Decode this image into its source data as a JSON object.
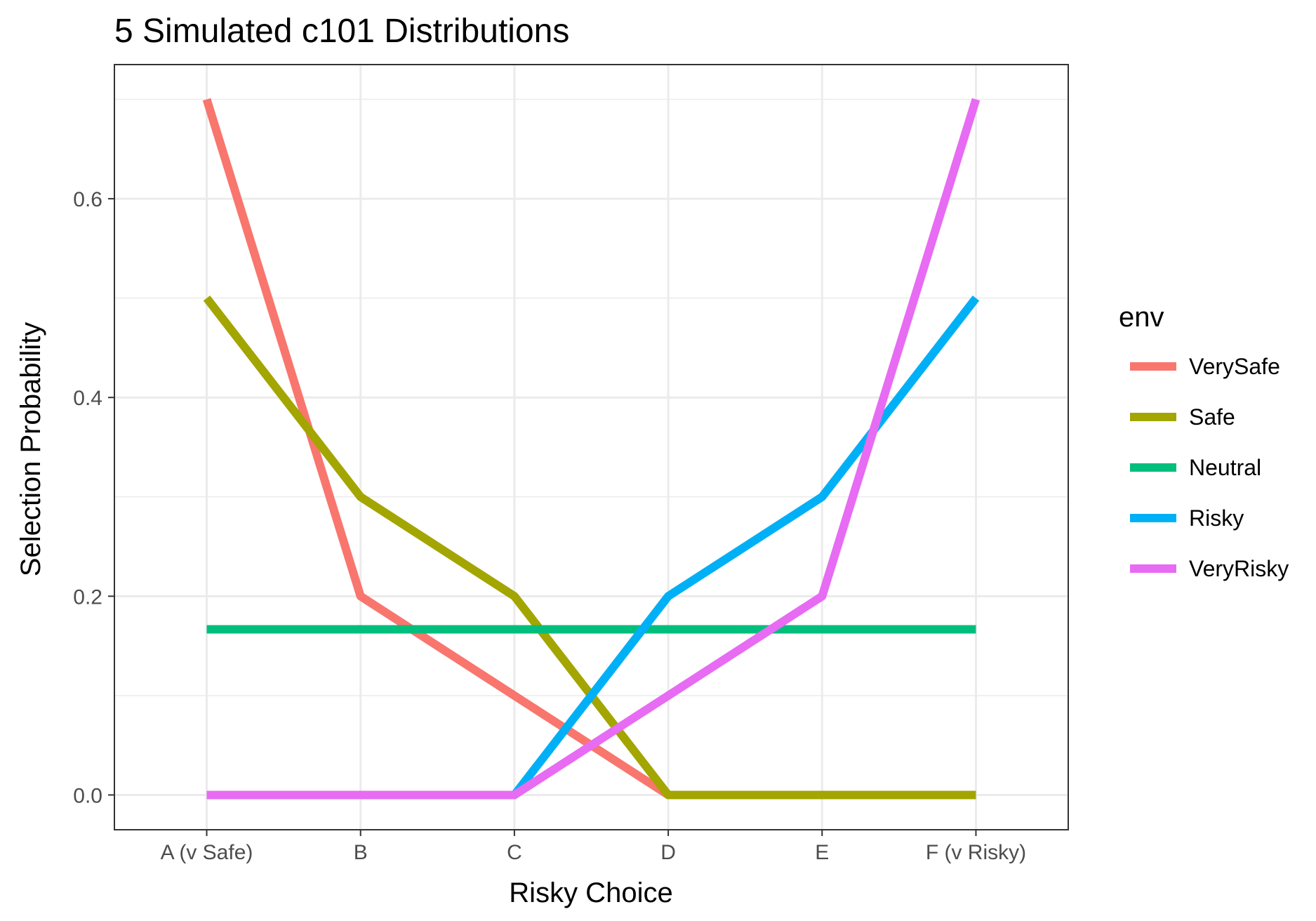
{
  "chart_data": {
    "type": "line",
    "title": "5 Simulated c101 Distributions",
    "xlabel": "Risky Choice",
    "ylabel": "Selection Probability",
    "categories": [
      "A (v Safe)",
      "B",
      "C",
      "D",
      "E",
      "F (v Risky)"
    ],
    "ylim": [
      -0.035,
      0.735
    ],
    "yticks": [
      0.0,
      0.2,
      0.4,
      0.6
    ],
    "ytick_labels": [
      "0.0",
      "0.2",
      "0.4",
      "0.6"
    ],
    "grid": true,
    "legend": {
      "title": "env",
      "placement": "right"
    },
    "series": [
      {
        "name": "VerySafe",
        "color": "#F8766D",
        "values": [
          0.7,
          0.2,
          0.1,
          0.0,
          0.0,
          0.0
        ]
      },
      {
        "name": "Safe",
        "color": "#A3A500",
        "values": [
          0.5,
          0.3,
          0.2,
          0.0,
          0.0,
          0.0
        ]
      },
      {
        "name": "Neutral",
        "color": "#00BF7D",
        "values": [
          0.1667,
          0.1667,
          0.1667,
          0.1667,
          0.1667,
          0.1667
        ]
      },
      {
        "name": "Risky",
        "color": "#00B0F6",
        "values": [
          0.0,
          0.0,
          0.0,
          0.2,
          0.3,
          0.5
        ]
      },
      {
        "name": "VeryRisky",
        "color": "#E76BF3",
        "values": [
          0.0,
          0.0,
          0.0,
          0.1,
          0.2,
          0.7
        ]
      }
    ]
  }
}
